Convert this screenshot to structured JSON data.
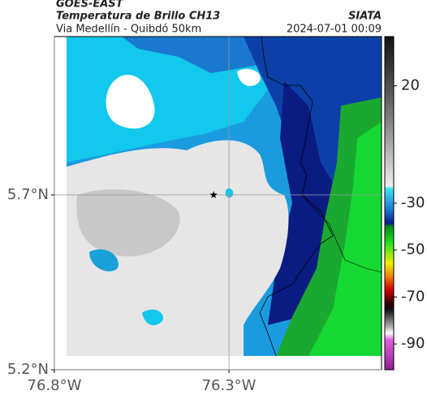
{
  "chart_data": {
    "type": "map",
    "supertitle": "GOES-EAST",
    "title": "Temperatura de Brillo CH13",
    "source": "SIATA",
    "subtitle": "Via Medellín - Quibdó 50km",
    "timestamp": "2024-07-01 00:09",
    "xlim": [
      -76.8,
      -75.863
    ],
    "ylim": [
      5.2,
      6.153
    ],
    "xticks": [
      {
        "value": -76.8,
        "label": "76.8°W"
      },
      {
        "value": -76.3,
        "label": "76.3°W"
      }
    ],
    "yticks": [
      {
        "value": 5.2,
        "label": "5.2°N"
      },
      {
        "value": 5.7,
        "label": "5.7°N"
      }
    ],
    "grid": true,
    "marker": {
      "lon": -76.344,
      "lat": 5.7
    },
    "colorbar": {
      "lim": [
        -101,
        41
      ],
      "ticks": [
        20,
        -30,
        -50,
        -70,
        -90
      ]
    }
  }
}
